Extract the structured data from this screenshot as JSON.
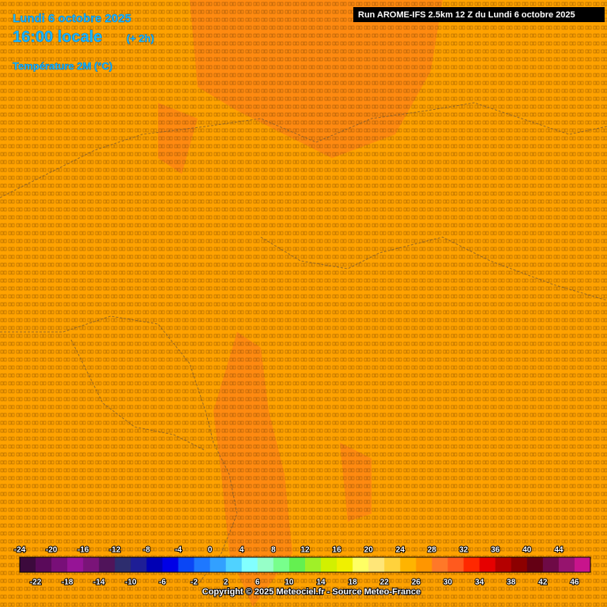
{
  "header": {
    "date": "Lundi 6 octobre 2025",
    "time": "16:00 locale",
    "offset": "(+ 2h)",
    "variable": "Température 2M (°C)",
    "run": "Run AROME-IFS 2.5km 12 Z du Lundi 6 octobre 2025"
  },
  "colorbar": {
    "range": [
      -24,
      48
    ],
    "top_labels": [
      -24,
      -20,
      -16,
      -12,
      -8,
      -4,
      0,
      4,
      8,
      12,
      16,
      20,
      24,
      28,
      32,
      36,
      40,
      44
    ],
    "bottom_labels": [
      -22,
      -18,
      -14,
      -10,
      -6,
      -2,
      2,
      6,
      10,
      14,
      18,
      22,
      26,
      30,
      34,
      38,
      42,
      46
    ],
    "colors": [
      "#3c0a3c",
      "#5a0a5a",
      "#780f78",
      "#961496",
      "#7a1478",
      "#50145a",
      "#2d2d6e",
      "#1e1e96",
      "#0000b4",
      "#0000e6",
      "#0a46f5",
      "#1e78ff",
      "#32a0ff",
      "#50d2ff",
      "#82ffff",
      "#96ffc8",
      "#78ff8c",
      "#64f050",
      "#a0f028",
      "#d2f000",
      "#f0f000",
      "#ffff64",
      "#ffe678",
      "#ffd23c",
      "#ffb400",
      "#ff9600",
      "#ff7828",
      "#ff5a1e",
      "#ff2800",
      "#e60000",
      "#b40000",
      "#8c0000",
      "#640014",
      "#6e0a46",
      "#96146e",
      "#c8148c"
    ]
  },
  "footer": {
    "copyright": "Copyright © 2025 Meteociel.fr - Source Meteo-France"
  }
}
